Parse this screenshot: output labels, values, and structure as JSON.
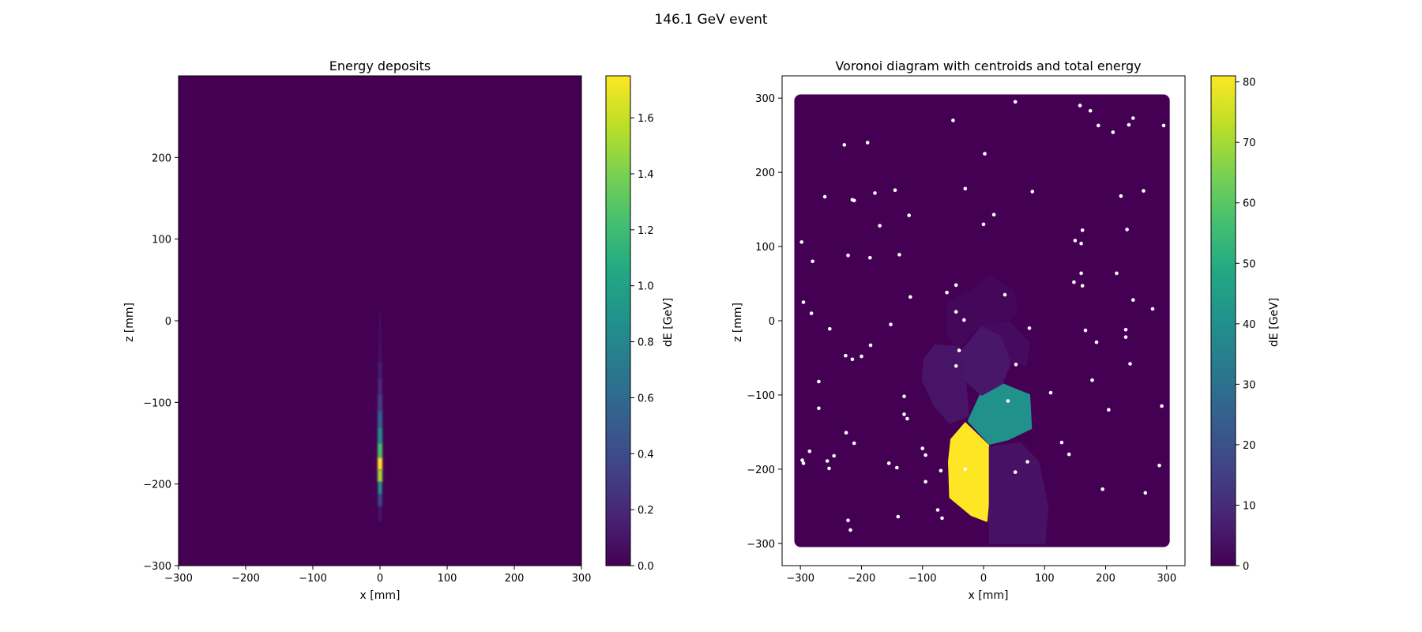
{
  "figure": {
    "suptitle": "146.1 GeV event"
  },
  "chart_data": [
    {
      "type": "heatmap",
      "title": "Energy deposits",
      "xlabel": "x [mm]",
      "ylabel": "z [mm]",
      "xlim": [
        -300,
        300
      ],
      "ylim": [
        -300,
        300
      ],
      "xticks": [
        -300,
        -200,
        -100,
        0,
        100,
        200,
        300
      ],
      "yticks": [
        -300,
        -200,
        -100,
        0,
        100,
        200
      ],
      "background_color": "#440154",
      "colorbar": {
        "label": "dE [GeV]",
        "range": [
          0,
          1.75
        ],
        "ticks": [
          0.0,
          0.2,
          0.4,
          0.6,
          0.8,
          1.0,
          1.2,
          1.4,
          1.6
        ],
        "tick_labels": [
          "0.0",
          "0.2",
          "0.4",
          "0.6",
          "0.8",
          "1.0",
          "1.2",
          "1.4",
          "1.6"
        ]
      },
      "shower_profile": [
        {
          "z": 0,
          "x": 0,
          "dE": 0.03,
          "w": 3
        },
        {
          "z": -20,
          "x": 0,
          "dE": 0.05,
          "w": 4
        },
        {
          "z": -40,
          "x": 0,
          "dE": 0.08,
          "w": 4
        },
        {
          "z": -60,
          "x": 0,
          "dE": 0.14,
          "w": 5
        },
        {
          "z": -80,
          "x": 0,
          "dE": 0.22,
          "w": 5
        },
        {
          "z": -100,
          "x": 0,
          "dE": 0.32,
          "w": 6
        },
        {
          "z": -120,
          "x": 0,
          "dE": 0.55,
          "w": 6
        },
        {
          "z": -140,
          "x": 0,
          "dE": 0.85,
          "w": 6
        },
        {
          "z": -160,
          "x": 0,
          "dE": 1.25,
          "w": 6
        },
        {
          "z": -175,
          "x": 0,
          "dE": 1.75,
          "w": 6
        },
        {
          "z": -190,
          "x": 0,
          "dE": 1.5,
          "w": 6
        },
        {
          "z": -205,
          "x": 0,
          "dE": 0.9,
          "w": 5
        },
        {
          "z": -220,
          "x": 0,
          "dE": 0.4,
          "w": 5
        },
        {
          "z": -235,
          "x": 0,
          "dE": 0.12,
          "w": 4
        }
      ]
    },
    {
      "type": "scatter",
      "title": "Voronoi diagram with centroids and total energy",
      "xlabel": "x [mm]",
      "ylabel": "z [mm]",
      "xlim": [
        -330,
        330
      ],
      "ylim": [
        -330,
        330
      ],
      "xticks": [
        -300,
        -200,
        -100,
        0,
        100,
        200,
        300
      ],
      "yticks": [
        -300,
        -200,
        -100,
        0,
        100,
        200,
        300
      ],
      "background_color": "#440154",
      "region": {
        "xmin": -310,
        "xmax": 305,
        "ymin": -305,
        "ymax": 305
      },
      "colorbar": {
        "label": "dE [GeV]",
        "range": [
          0,
          81
        ],
        "ticks": [
          0,
          10,
          20,
          30,
          40,
          50,
          60,
          70,
          80
        ],
        "tick_labels": [
          "0",
          "10",
          "20",
          "30",
          "40",
          "50",
          "60",
          "70",
          "80"
        ]
      },
      "cells": [
        {
          "energy": 81,
          "color": "#fde725",
          "points": [
            [
              -30,
              -138
            ],
            [
              -53,
              -160
            ],
            [
              -57,
              -190
            ],
            [
              -55,
              -238
            ],
            [
              -20,
              -262
            ],
            [
              5,
              -270
            ],
            [
              10,
              -225
            ],
            [
              8,
              -168
            ]
          ]
        },
        {
          "energy": 44,
          "color": "#21918c",
          "points": [
            [
              -25,
              -135
            ],
            [
              -5,
              -100
            ],
            [
              30,
              -85
            ],
            [
              75,
              -100
            ],
            [
              78,
              -145
            ],
            [
              40,
              -160
            ],
            [
              10,
              -166
            ]
          ]
        },
        {
          "energy": 4,
          "color": "#481467",
          "points": [
            [
              -97,
              -52
            ],
            [
              -80,
              -33
            ],
            [
              -40,
              -35
            ],
            [
              -32,
              -60
            ],
            [
              -25,
              -128
            ],
            [
              -55,
              -138
            ],
            [
              -80,
              -115
            ],
            [
              -100,
              -80
            ]
          ]
        },
        {
          "energy": 5,
          "color": "#481769",
          "points": [
            [
              -35,
              -40
            ],
            [
              0,
              -5
            ],
            [
              30,
              -20
            ],
            [
              45,
              -55
            ],
            [
              30,
              -85
            ],
            [
              -3,
              -100
            ],
            [
              -30,
              -80
            ]
          ]
        },
        {
          "energy": 3,
          "color": "#471164",
          "points": [
            [
              10,
              -170
            ],
            [
              60,
              -165
            ],
            [
              90,
              -190
            ],
            [
              105,
              -250
            ],
            [
              100,
              -300
            ],
            [
              10,
              -300
            ]
          ]
        },
        {
          "energy": 2,
          "color": "#460b5e",
          "points": [
            [
              -5,
              -5
            ],
            [
              40,
              0
            ],
            [
              75,
              -30
            ],
            [
              70,
              -60
            ],
            [
              45,
              -55
            ],
            [
              30,
              -20
            ]
          ]
        },
        {
          "energy": 1,
          "color": "#45075a",
          "points": [
            [
              -60,
              25
            ],
            [
              -20,
              40
            ],
            [
              10,
              60
            ],
            [
              50,
              40
            ],
            [
              55,
              10
            ],
            [
              40,
              0
            ],
            [
              -5,
              -5
            ],
            [
              -40,
              -35
            ],
            [
              -60,
              -20
            ]
          ]
        }
      ],
      "points_color": "#ffffff",
      "points": [
        [
          52,
          295
        ],
        [
          -50,
          270
        ],
        [
          158,
          290
        ],
        [
          175,
          283
        ],
        [
          188,
          263
        ],
        [
          212,
          254
        ],
        [
          238,
          264
        ],
        [
          245,
          273
        ],
        [
          295,
          263
        ],
        [
          -228,
          237
        ],
        [
          -190,
          240
        ],
        [
          2,
          225
        ],
        [
          -260,
          167
        ],
        [
          -215,
          163
        ],
        [
          -212,
          162
        ],
        [
          -178,
          172
        ],
        [
          -145,
          176
        ],
        [
          -30,
          178
        ],
        [
          80,
          174
        ],
        [
          225,
          168
        ],
        [
          262,
          175
        ],
        [
          -170,
          128
        ],
        [
          -122,
          142
        ],
        [
          0,
          130
        ],
        [
          17,
          143
        ],
        [
          -298,
          106
        ],
        [
          -222,
          88
        ],
        [
          -186,
          85
        ],
        [
          -138,
          89
        ],
        [
          -280,
          80
        ],
        [
          150,
          108
        ],
        [
          160,
          104
        ],
        [
          162,
          122
        ],
        [
          235,
          123
        ],
        [
          -120,
          32
        ],
        [
          -60,
          38
        ],
        [
          -45,
          48
        ],
        [
          35,
          35
        ],
        [
          148,
          52
        ],
        [
          160,
          64
        ],
        [
          162,
          47
        ],
        [
          218,
          64
        ],
        [
          245,
          28
        ],
        [
          277,
          16
        ],
        [
          -295,
          25
        ],
        [
          -282,
          10
        ],
        [
          -45,
          12
        ],
        [
          -32,
          1
        ],
        [
          -252,
          -11
        ],
        [
          -152,
          -5
        ],
        [
          75,
          -10
        ],
        [
          167,
          -13
        ],
        [
          233,
          -12
        ],
        [
          233,
          -22
        ],
        [
          185,
          -29
        ],
        [
          -185,
          -33
        ],
        [
          -226,
          -47
        ],
        [
          -215,
          -52
        ],
        [
          -200,
          -48
        ],
        [
          -40,
          -40
        ],
        [
          -45,
          -61
        ],
        [
          53,
          -59
        ],
        [
          240,
          -58
        ],
        [
          -270,
          -82
        ],
        [
          -130,
          -102
        ],
        [
          110,
          -97
        ],
        [
          178,
          -80
        ],
        [
          40,
          -108
        ],
        [
          -270,
          -118
        ],
        [
          -130,
          -126
        ],
        [
          -125,
          -132
        ],
        [
          292,
          -115
        ],
        [
          205,
          -120
        ],
        [
          -225,
          -151
        ],
        [
          -212,
          -165
        ],
        [
          -285,
          -176
        ],
        [
          -245,
          -182
        ],
        [
          -100,
          -172
        ],
        [
          -95,
          -181
        ],
        [
          128,
          -164
        ],
        [
          140,
          -180
        ],
        [
          -297,
          -188
        ],
        [
          -295,
          -192
        ],
        [
          -256,
          -189
        ],
        [
          -253,
          -199
        ],
        [
          -155,
          -192
        ],
        [
          -142,
          -198
        ],
        [
          -70,
          -202
        ],
        [
          -30,
          -200
        ],
        [
          52,
          -204
        ],
        [
          72,
          -190
        ],
        [
          288,
          -195
        ],
        [
          -95,
          -217
        ],
        [
          195,
          -227
        ],
        [
          265,
          -232
        ],
        [
          -75,
          -255
        ],
        [
          -68,
          -266
        ],
        [
          -222,
          -269
        ],
        [
          -218,
          -282
        ],
        [
          -140,
          -264
        ]
      ]
    }
  ]
}
